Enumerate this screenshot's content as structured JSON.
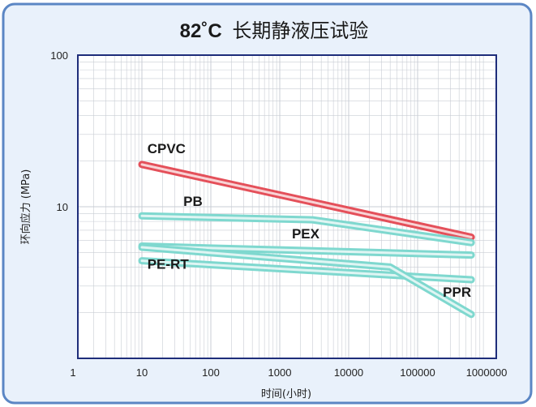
{
  "chart_data": {
    "type": "line",
    "title": "82˚C 长期静液压试验",
    "title_parts": {
      "temp": "82˚C",
      "text": "长期静液压试验"
    },
    "xlabel": "时间(小时)",
    "ylabel": "环向应力 (MPa)",
    "x_scale": "log",
    "y_scale": "log",
    "xlim": [
      1,
      1000000
    ],
    "ylim": [
      1,
      100
    ],
    "x_ticks": [
      "1",
      "10",
      "100",
      "1000",
      "10000",
      "100000",
      "1000000"
    ],
    "y_ticks": [
      "10",
      "100"
    ],
    "grid": true,
    "colors": {
      "frame_bg": "#e9f1fb",
      "frame_border": "#5b86c4",
      "plot_border": "#1e2d7a",
      "grid": "#c9cdd4",
      "cpvc": "#e4505a",
      "other": "#7fd8cf"
    },
    "series": [
      {
        "name": "CPVC",
        "color": "#e4505a",
        "x": [
          10,
          600000
        ],
        "y": [
          19,
          6.3
        ]
      },
      {
        "name": "PB",
        "color": "#7fd8cf",
        "x": [
          10,
          3000,
          600000
        ],
        "y": [
          8.7,
          8.2,
          5.8
        ]
      },
      {
        "name": "PEX",
        "color": "#7fd8cf",
        "x": [
          10,
          600000
        ],
        "y": [
          5.5,
          4.8
        ]
      },
      {
        "name": "PE-RT",
        "color": "#7fd8cf",
        "x": [
          10,
          600000
        ],
        "y": [
          4.4,
          3.3
        ]
      },
      {
        "name": "PPR",
        "color": "#7fd8cf",
        "x": [
          10,
          40000,
          600000
        ],
        "y": [
          5.4,
          4.0,
          1.95
        ]
      }
    ],
    "annotations": [
      {
        "text": "CPVC",
        "x": 12,
        "y": 22.5
      },
      {
        "text": "PB",
        "x": 40,
        "y": 10.1
      },
      {
        "text": "PEX",
        "x": 1500,
        "y": 6.2
      },
      {
        "text": "PE-RT",
        "x": 12,
        "y": 3.9
      },
      {
        "text": "PPR",
        "x": 600000,
        "y": 2.55
      }
    ]
  }
}
